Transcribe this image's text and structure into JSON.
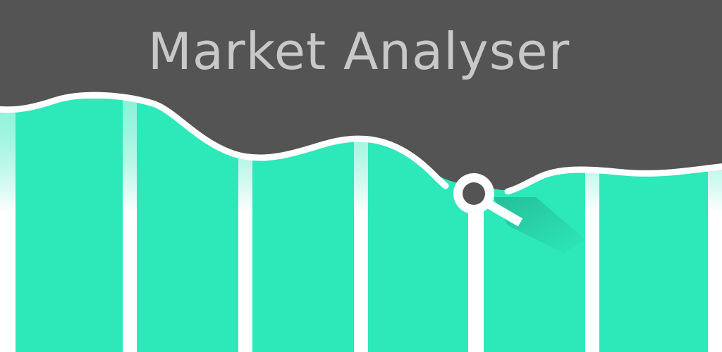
{
  "app": {
    "title": "Market Analyser"
  },
  "theme": {
    "background": "#545454",
    "accent": "#2de8b9",
    "curve": "#ffffff",
    "title_color": "#c8c8c8"
  },
  "icons": {
    "magnifier": "search-icon"
  }
}
